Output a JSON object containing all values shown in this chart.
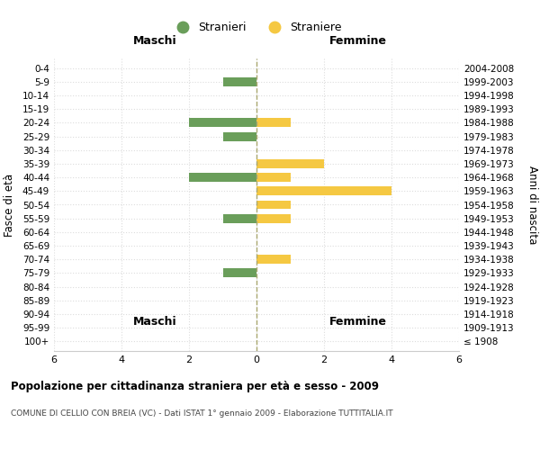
{
  "age_groups": [
    "100+",
    "95-99",
    "90-94",
    "85-89",
    "80-84",
    "75-79",
    "70-74",
    "65-69",
    "60-64",
    "55-59",
    "50-54",
    "45-49",
    "40-44",
    "35-39",
    "30-34",
    "25-29",
    "20-24",
    "15-19",
    "10-14",
    "5-9",
    "0-4"
  ],
  "birth_years": [
    "≤ 1908",
    "1909-1913",
    "1914-1918",
    "1919-1923",
    "1924-1928",
    "1929-1933",
    "1934-1938",
    "1939-1943",
    "1944-1948",
    "1949-1953",
    "1954-1958",
    "1959-1963",
    "1964-1968",
    "1969-1973",
    "1974-1978",
    "1979-1983",
    "1984-1988",
    "1989-1993",
    "1994-1998",
    "1999-2003",
    "2004-2008"
  ],
  "maschi": [
    0,
    0,
    0,
    0,
    0,
    -1,
    0,
    0,
    0,
    -1,
    0,
    0,
    -2,
    0,
    0,
    -1,
    -2,
    0,
    0,
    -1,
    0
  ],
  "femmine": [
    0,
    0,
    0,
    0,
    0,
    0,
    1,
    0,
    0,
    1,
    1,
    4,
    1,
    2,
    0,
    0,
    1,
    0,
    0,
    0,
    0
  ],
  "color_maschi": "#6a9e5a",
  "color_femmine": "#f5c842",
  "title": "Popolazione per cittadinanza straniera per età e sesso - 2009",
  "subtitle": "COMUNE DI CELLIO CON BREIA (VC) - Dati ISTAT 1° gennaio 2009 - Elaborazione TUTTITALIA.IT",
  "xlabel_left": "Maschi",
  "xlabel_right": "Femmine",
  "ylabel_left": "Fasce di età",
  "ylabel_right": "Anni di nascita",
  "legend_maschi": "Stranieri",
  "legend_femmine": "Straniere",
  "xlim": [
    -6,
    6
  ],
  "xticks": [
    -6,
    -4,
    -2,
    0,
    2,
    4,
    6
  ],
  "xticklabels": [
    "6",
    "4",
    "2",
    "0",
    "2",
    "4",
    "6"
  ],
  "background_color": "#ffffff",
  "grid_color": "#dddddd"
}
